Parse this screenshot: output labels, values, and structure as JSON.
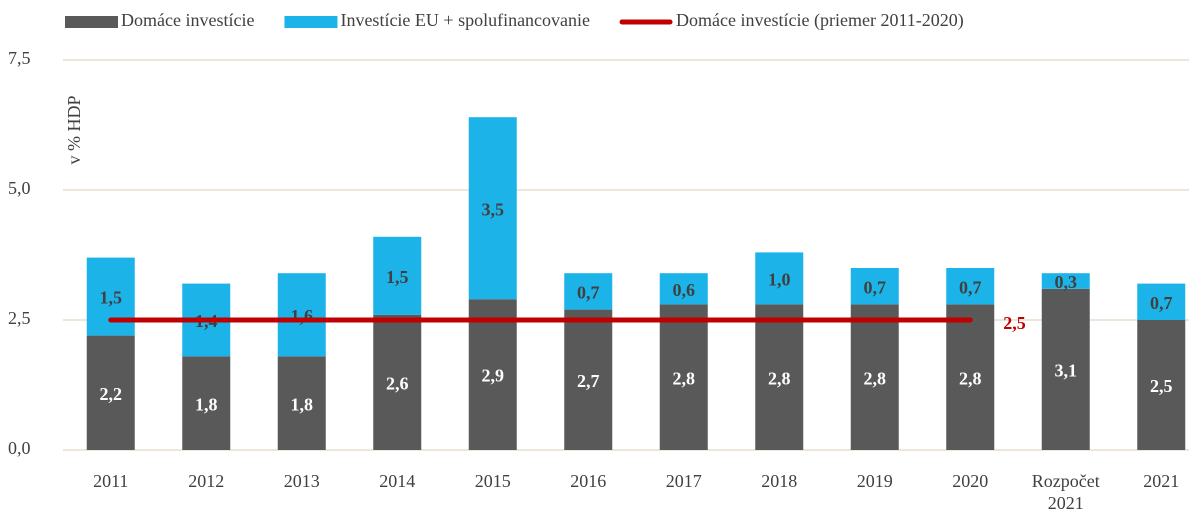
{
  "chart_data": {
    "type": "bar",
    "stacked": true,
    "y_label": "v % HDP",
    "categories": [
      "2011",
      "2012",
      "2013",
      "2014",
      "2015",
      "2016",
      "2017",
      "2018",
      "2019",
      "2020",
      "Rozpočet 2021",
      "2021"
    ],
    "series": [
      {
        "name": "Domáce investície",
        "color": "#595959",
        "label_color": "#ffffff",
        "values": [
          2.2,
          1.8,
          1.8,
          2.6,
          2.9,
          2.7,
          2.8,
          2.8,
          2.8,
          2.8,
          3.1,
          2.5
        ],
        "value_labels": [
          "2,2",
          "1,8",
          "1,8",
          "2,6",
          "2,9",
          "2,7",
          "2,8",
          "2,8",
          "2,8",
          "2,8",
          "3,1",
          "2,5"
        ]
      },
      {
        "name": "Investície EU + spolufinancovanie",
        "color": "#1cb4e8",
        "label_color": "#404040",
        "values": [
          1.5,
          1.4,
          1.6,
          1.5,
          3.5,
          0.7,
          0.6,
          1.0,
          0.7,
          0.7,
          0.3,
          0.7
        ],
        "value_labels": [
          "1,5",
          "1,4",
          "1,6",
          "1,5",
          "3,5",
          "0,7",
          "0,6",
          "1,0",
          "0,7",
          "0,7",
          "0,3",
          "0,7"
        ]
      },
      {
        "name": "Domáce investície (priemer 2011-2020)",
        "color": "#c00000",
        "kind": "line",
        "label_color": "#c00000",
        "values": [
          2.5,
          2.5,
          2.5,
          2.5,
          2.5,
          2.5,
          2.5,
          2.5,
          2.5,
          2.5,
          null,
          null
        ],
        "value_labels": [
          null,
          null,
          null,
          null,
          null,
          null,
          null,
          null,
          null,
          "2,5",
          null,
          null
        ]
      }
    ],
    "ylim": [
      0,
      7.5
    ],
    "yticks": [
      {
        "value": 0,
        "label": "0,0"
      },
      {
        "value": 2.5,
        "label": "2,5"
      },
      {
        "value": 5,
        "label": "5,0"
      },
      {
        "value": 7.5,
        "label": "7,5"
      }
    ],
    "grid": true,
    "legend": "top"
  }
}
